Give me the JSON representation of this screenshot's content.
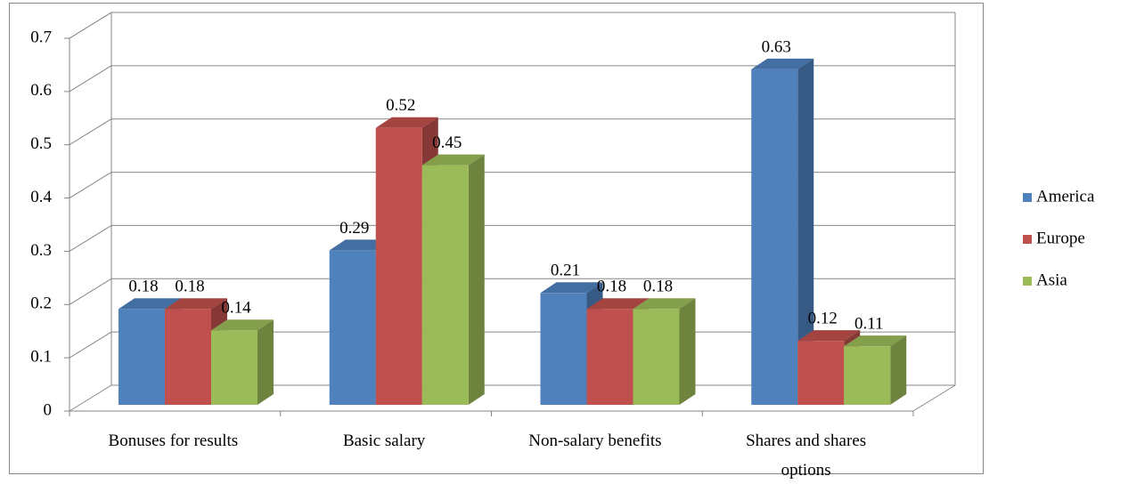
{
  "chart_data": {
    "type": "bar",
    "categories": [
      "Bonuses for results",
      "Basic salary",
      "Non-salary benefits",
      "Shares and shares options"
    ],
    "series": [
      {
        "name": "America",
        "color": "#4f81bd",
        "values": [
          0.18,
          0.29,
          0.21,
          0.63
        ]
      },
      {
        "name": "Europe",
        "color": "#c0504d",
        "values": [
          0.18,
          0.52,
          0.18,
          0.12
        ]
      },
      {
        "name": "Asia",
        "color": "#9bbb59",
        "values": [
          0.14,
          0.45,
          0.18,
          0.11
        ]
      }
    ],
    "ylim": [
      0,
      0.7
    ],
    "yticks": [
      0,
      0.1,
      0.2,
      0.3,
      0.4,
      0.5,
      0.6,
      0.7
    ],
    "grid": true,
    "legend": "right"
  }
}
